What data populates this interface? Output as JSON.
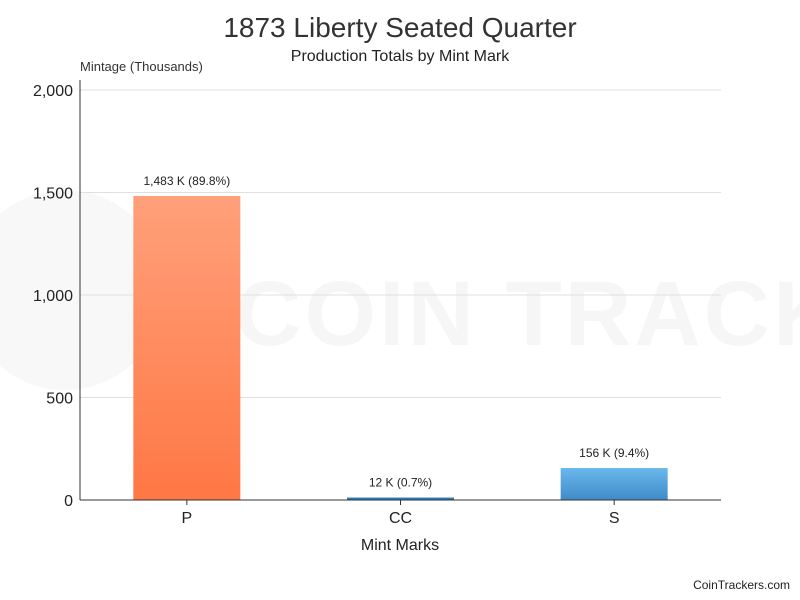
{
  "watermark": "COIN TRACKERS",
  "credit": "CoinTrackers.com",
  "colors": {
    "p_top": "#ffa07a",
    "p_bottom": "#ff7744",
    "s_top": "#6ab8ec",
    "s_bottom": "#3f8bc9",
    "cc": "#2e7ab8",
    "grid": "#e0e0e0",
    "axis": "#333333"
  },
  "chart_data": {
    "type": "bar",
    "title": "1873 Liberty Seated Quarter",
    "subtitle": "Production Totals by Mint Mark",
    "ylabel": "Mintage (Thousands)",
    "xlabel": "Mint Marks",
    "ylim": [
      0,
      2000
    ],
    "yticks": [
      0,
      500,
      1000,
      1500,
      2000
    ],
    "ytick_labels": [
      "0",
      "500",
      "1,000",
      "1,500",
      "2,000"
    ],
    "grid": true,
    "categories": [
      "P",
      "CC",
      "S"
    ],
    "values": [
      1483,
      12,
      156
    ],
    "data_labels": [
      "1,483 K (89.8%)",
      "12 K (0.7%)",
      "156 K (9.4%)"
    ]
  }
}
